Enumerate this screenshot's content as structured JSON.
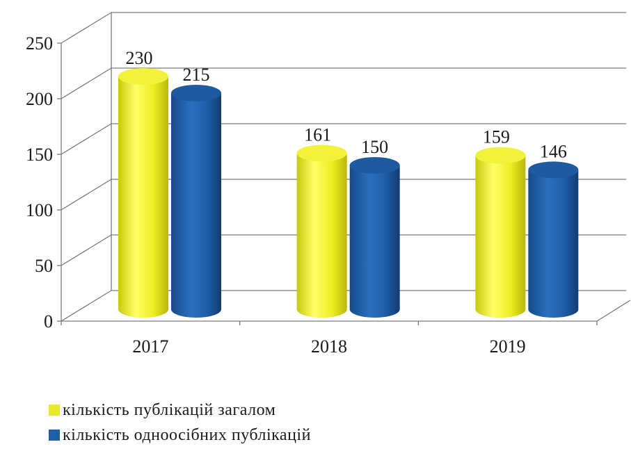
{
  "chart_data": {
    "type": "bar",
    "categories": [
      "2017",
      "2018",
      "2019"
    ],
    "series": [
      {
        "name": "кількість публікацій загалом",
        "values": [
          230,
          161,
          159
        ],
        "color": "#e8e832"
      },
      {
        "name": "кількість одноосібних публікацій",
        "values": [
          215,
          150,
          146
        ],
        "color": "#1f5fa8"
      }
    ],
    "yticks": [
      "0",
      "50",
      "100",
      "150",
      "200",
      "250"
    ],
    "ylim": [
      0,
      250
    ],
    "grid": true,
    "legend_position": "bottom-left"
  }
}
